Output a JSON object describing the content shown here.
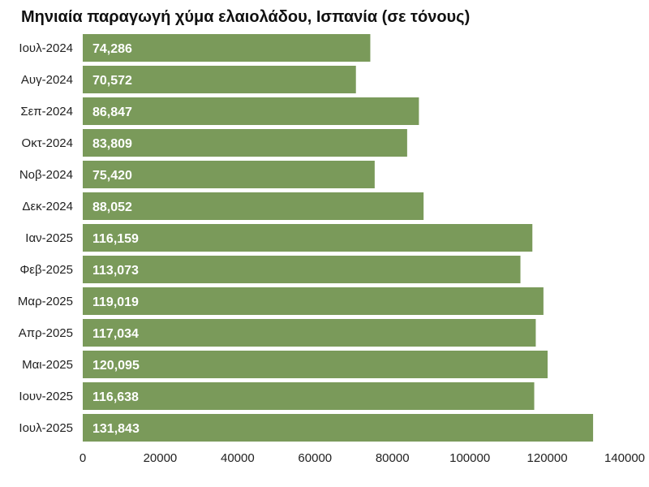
{
  "chart_data": {
    "type": "bar",
    "orientation": "horizontal",
    "title": "Μηνιαία παραγωγή χύμα ελαιολάδου, Ισπανία (σε τόνους)",
    "xlabel": "",
    "ylabel": "",
    "categories": [
      "Ιουλ-2024",
      "Αυγ-2024",
      "Σεπ-2024",
      "Οκτ-2024",
      "Νοβ-2024",
      "Δεκ-2024",
      "Ιαν-2025",
      "Φεβ-2025",
      "Μαρ-2025",
      "Απρ-2025",
      "Μαι-2025",
      "Ιουν-2025",
      "Ιουλ-2025"
    ],
    "values": [
      74286,
      70572,
      86847,
      83809,
      75420,
      88052,
      116159,
      113073,
      119019,
      117034,
      120095,
      116638,
      131843
    ],
    "value_labels": [
      "74,286",
      "70,572",
      "86,847",
      "83,809",
      "75,420",
      "88,052",
      "116,159",
      "113,073",
      "119,019",
      "117,034",
      "120,095",
      "116,638",
      "131,843"
    ],
    "xlim": [
      0,
      140000
    ],
    "xticks": [
      0,
      20000,
      40000,
      60000,
      80000,
      100000,
      120000,
      140000
    ],
    "xtick_labels": [
      "0",
      "20000",
      "40000",
      "60000",
      "80000",
      "100000",
      "120000",
      "140000"
    ],
    "bar_color": "#7a9a5a",
    "grid": false,
    "legend": "none"
  }
}
